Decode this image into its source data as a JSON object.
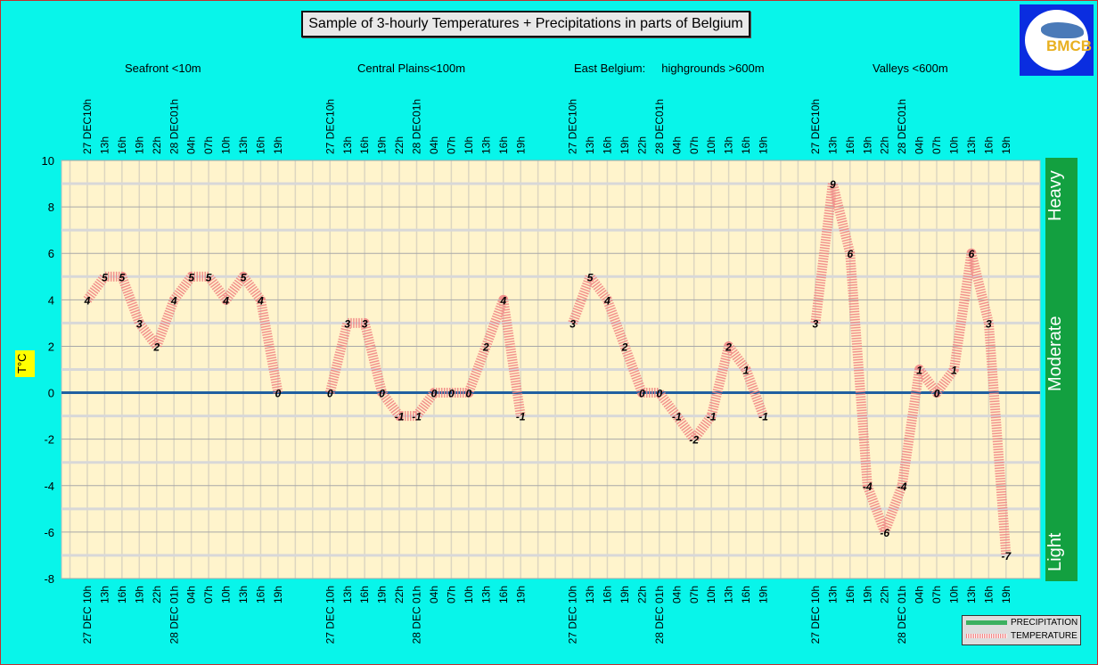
{
  "title": "Sample of 3-hourly Temperatures + Precipitations in parts of Belgium",
  "logo_text": "BMCB",
  "y_axis_label": "T°C",
  "precip_scale": [
    "Heavy",
    "Moderate",
    "Light"
  ],
  "legend": [
    {
      "label": "PRECIPITATION",
      "color": "#3cb060"
    },
    {
      "label": "TEMPERATURE",
      "color": "#f08080"
    }
  ],
  "colors": {
    "background": "#08f5ea",
    "plot": "#fff4cc",
    "line": "#f08080",
    "zero": "#2060a0",
    "precip": "#13a040"
  },
  "chart_data": {
    "type": "line",
    "ylim": [
      -8,
      10
    ],
    "yticks": [
      10,
      8,
      6,
      4,
      2,
      0,
      -2,
      -4,
      -6,
      -8
    ],
    "grid": true,
    "legend_position": "bottom-right",
    "top_tick_labels": [
      "27 DEC10h",
      "13h",
      "16h",
      "19h",
      "22h",
      "28 DEC01h",
      "04h",
      "07h",
      "10h",
      "13h",
      "16h",
      "19h"
    ],
    "bottom_tick_labels": [
      "27 DEC 10h",
      "13h",
      "16h",
      "19h",
      "22h",
      "28 DEC 01h",
      "04h",
      "07h",
      "10h",
      "13h",
      "16h",
      "19h"
    ],
    "series": [
      {
        "name": "Seafront <10m",
        "values": [
          4,
          5,
          5,
          3,
          2,
          4,
          5,
          5,
          4,
          5,
          4,
          0
        ]
      },
      {
        "name": "Central Plains<100m",
        "values": [
          0,
          3,
          3,
          0,
          -1,
          -1,
          0,
          0,
          0,
          2,
          4,
          -1
        ]
      },
      {
        "name": "East Belgium:     highgrounds >600m",
        "values": [
          3,
          5,
          4,
          2,
          0,
          0,
          -1,
          -2,
          -1,
          2,
          1,
          -1
        ]
      },
      {
        "name": "Valleys <600m",
        "values": [
          3,
          9,
          6,
          -4,
          -6,
          -4,
          1,
          0,
          1,
          6,
          3,
          -7
        ]
      }
    ]
  }
}
